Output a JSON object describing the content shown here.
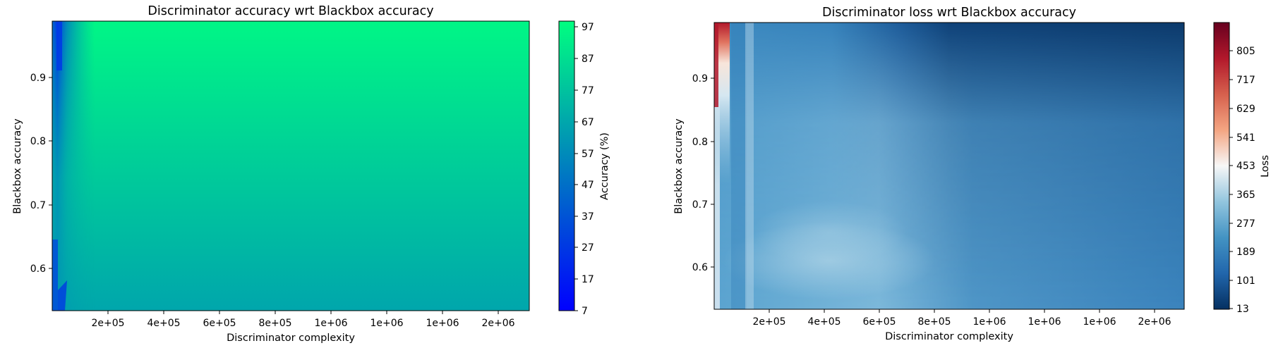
{
  "chart_data": [
    {
      "type": "heatmap",
      "title": "Discriminator accuracy wrt Blackbox accuracy",
      "xlabel": "Discriminator complexity",
      "ylabel": "Blackbox accuracy",
      "x_tick_labels": [
        "2e+05",
        "4e+05",
        "6e+05",
        "8e+05",
        "1e+06",
        "1e+06",
        "1e+06",
        "2e+06"
      ],
      "y_tick_labels": [
        "0.6",
        "0.7",
        "0.8",
        "0.9"
      ],
      "colorbar": {
        "label": "Accuracy (%)",
        "ticks": [
          "97",
          "87",
          "77",
          "67",
          "57",
          "47",
          "37",
          "27",
          "17",
          "7"
        ],
        "range": [
          7,
          97
        ],
        "colormap": "winter",
        "colors": [
          "#0000ff",
          "#0080bf",
          "#00ff80"
        ]
      },
      "grid": false,
      "description_values": {
        "top_region_value": 95,
        "bottom_region_value": 60,
        "low_complexity_strip_value": 30
      }
    },
    {
      "type": "heatmap",
      "title": "Discriminator loss wrt Blackbox accuracy",
      "xlabel": "Discriminator complexity",
      "ylabel": "Blackbox accuracy",
      "x_tick_labels": [
        "2e+05",
        "4e+05",
        "6e+05",
        "8e+05",
        "1e+06",
        "1e+06",
        "1e+06",
        "2e+06"
      ],
      "y_tick_labels": [
        "0.6",
        "0.7",
        "0.8",
        "0.9"
      ],
      "colorbar": {
        "label": "Loss",
        "ticks": [
          "805",
          "717",
          "629",
          "541",
          "453",
          "365",
          "277",
          "189",
          "101",
          "13"
        ],
        "range": [
          13,
          890
        ],
        "colormap": "RdBu_r",
        "colors": [
          "#053061",
          "#2166ac",
          "#4393c3",
          "#92c5de",
          "#f7f7f7",
          "#f4a582",
          "#d6604d",
          "#b2182b",
          "#67001f"
        ]
      },
      "grid": false
    }
  ]
}
